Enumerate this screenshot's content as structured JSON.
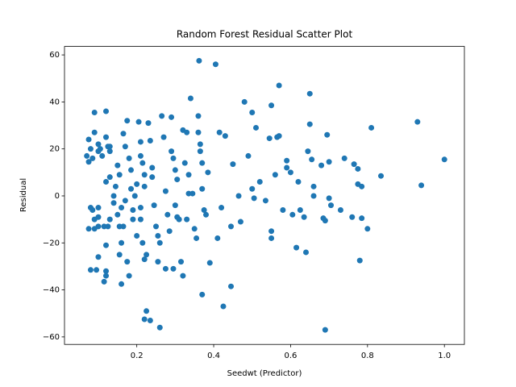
{
  "chart_data": {
    "type": "scatter",
    "title": "Random Forest Residual Scatter Plot",
    "x_label": "Seedwt (Predictor)",
    "y_label": "Residual",
    "color": "#1f77b4",
    "xlim": [
      0.012,
      1.052
    ],
    "ylim": [
      -63.2,
      63.6
    ],
    "xticks": [
      0.2,
      0.4,
      0.6,
      0.8,
      {
        "value": 1,
        "label": "1.0"
      }
    ],
    "yticks": [
      {
        "value": -60,
        "label": "−60"
      },
      {
        "value": -40,
        "label": "−40"
      },
      {
        "value": -20,
        "label": "−20"
      },
      0,
      20,
      40,
      60
    ],
    "x": [
      0.07,
      0.075,
      0.075,
      0.08,
      0.085,
      0.09,
      0.09,
      0.1,
      0.1,
      0.105,
      0.11,
      0.12,
      0.12,
      0.125,
      0.13,
      0.13,
      0.08,
      0.085,
      0.09,
      0.1,
      0.1,
      0.09,
      0.075,
      0.08,
      0.095,
      0.1,
      0.115,
      0.12,
      0.12,
      0.115,
      0.12,
      0.125,
      0.13,
      0.1,
      0.12,
      0.13,
      0.14,
      0.145,
      0.14,
      0.15,
      0.15,
      0.155,
      0.16,
      0.155,
      0.16,
      0.155,
      0.16,
      0.165,
      0.17,
      0.175,
      0.18,
      0.175,
      0.17,
      0.165,
      0.18,
      0.185,
      0.185,
      0.19,
      0.19,
      0.195,
      0.2,
      0.2,
      0.205,
      0.21,
      0.21,
      0.215,
      0.22,
      0.22,
      0.21,
      0.21,
      0.215,
      0.22,
      0.225,
      0.22,
      0.225,
      0.235,
      0.23,
      0.235,
      0.24,
      0.24,
      0.245,
      0.25,
      0.255,
      0.26,
      0.255,
      0.26,
      0.265,
      0.27,
      0.275,
      0.28,
      0.275,
      0.285,
      0.29,
      0.29,
      0.295,
      0.3,
      0.305,
      0.3,
      0.305,
      0.31,
      0.295,
      0.315,
      0.32,
      0.32,
      0.33,
      0.325,
      0.335,
      0.33,
      0.335,
      0.34,
      0.345,
      0.35,
      0.355,
      0.36,
      0.36,
      0.365,
      0.365,
      0.37,
      0.37,
      0.375,
      0.38,
      0.362,
      0.37,
      0.385,
      0.39,
      0.405,
      0.41,
      0.415,
      0.42,
      0.425,
      0.43,
      0.445,
      0.445,
      0.45,
      0.465,
      0.47,
      0.48,
      0.49,
      0.5,
      0.51,
      0.5,
      0.505,
      0.52,
      0.535,
      0.545,
      0.55,
      0.55,
      0.55,
      0.56,
      0.565,
      0.57,
      0.57,
      0.58,
      0.59,
      0.59,
      0.6,
      0.605,
      0.615,
      0.62,
      0.625,
      0.635,
      0.64,
      0.645,
      0.65,
      0.65,
      0.655,
      0.66,
      0.66,
      0.68,
      0.685,
      0.69,
      0.69,
      0.695,
      0.7,
      0.7,
      0.705,
      0.73,
      0.74,
      0.76,
      0.765,
      0.775,
      0.775,
      0.78,
      0.785,
      0.785,
      0.8,
      0.81,
      0.835,
      0.93,
      0.94,
      1.0
    ],
    "values": [
      17,
      24,
      14.5,
      20,
      16,
      27,
      35.5,
      22,
      19,
      20,
      17,
      36,
      25,
      21,
      21,
      19,
      -5,
      -6,
      -10,
      -9,
      -5,
      -14,
      -14,
      -31.5,
      -31.5,
      -26,
      -36.5,
      -32,
      -34,
      -13,
      -21,
      -13,
      -10,
      -13,
      6,
      8,
      0,
      4,
      -3,
      -8,
      13,
      9,
      -5,
      -13,
      -20,
      -25,
      -37.5,
      -13,
      -2,
      -28,
      -34,
      32,
      21,
      26.5,
      16,
      11,
      3,
      -6,
      -10,
      0,
      5,
      -17,
      31.5,
      23,
      17,
      14,
      4,
      9,
      -5,
      -10,
      -20,
      -27,
      -25,
      -52.5,
      -49,
      -53,
      31,
      23.5,
      12,
      8,
      -4,
      -13,
      -17,
      -20,
      -28,
      -56,
      34,
      25,
      2,
      -8,
      -31,
      -15,
      19,
      33.5,
      16,
      11,
      7,
      -4,
      -9,
      -10,
      -31,
      -28,
      -34,
      28,
      27,
      14,
      9,
      -10,
      1,
      41.5,
      1,
      -14,
      -18,
      27,
      34,
      22,
      19,
      14,
      3,
      -6,
      -8,
      57.5,
      -42,
      10,
      -28.5,
      56,
      -18,
      27,
      -5,
      -47,
      25.5,
      -13,
      -38.5,
      13.5,
      0,
      -11,
      40,
      17,
      35.5,
      29,
      3,
      -1,
      6,
      -2,
      24.5,
      38.5,
      -18,
      -15,
      9,
      25,
      47,
      25.5,
      -6,
      15,
      12,
      10,
      -8,
      -22,
      6,
      -6,
      -9,
      -24,
      19,
      43.5,
      30.5,
      15.5,
      4,
      0,
      13,
      -9.5,
      -10.5,
      -57,
      26,
      14.5,
      -1,
      -4,
      -6,
      16,
      -9,
      13.5,
      11.5,
      5,
      -27.5,
      4,
      -9.5,
      -14,
      29,
      8.5,
      31.5,
      4.5,
      15.5
    ]
  }
}
